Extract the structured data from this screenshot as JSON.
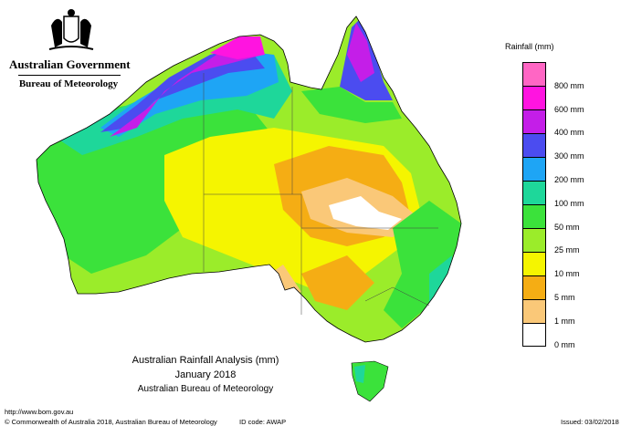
{
  "header": {
    "government": "Australian Government",
    "agency": "Bureau of Meteorology"
  },
  "legend": {
    "title": "Rainfall (mm)",
    "items": [
      {
        "label": "",
        "color": "#ff66c4"
      },
      {
        "label": "800 mm",
        "color": "#ff14e0"
      },
      {
        "label": "600 mm",
        "color": "#c41ee8"
      },
      {
        "label": "400 mm",
        "color": "#4b4cf0"
      },
      {
        "label": "300 mm",
        "color": "#1ea5f5"
      },
      {
        "label": "200 mm",
        "color": "#1ed79a"
      },
      {
        "label": "100 mm",
        "color": "#3be23b"
      },
      {
        "label": "50 mm",
        "color": "#9bec2a"
      },
      {
        "label": "25 mm",
        "color": "#f5f500"
      },
      {
        "label": "10 mm",
        "color": "#f5ad14"
      },
      {
        "label": "5 mm",
        "color": "#fac878"
      },
      {
        "label": "1 mm",
        "color": "#ffffff"
      },
      {
        "label": "0 mm",
        "color": ""
      }
    ]
  },
  "caption": {
    "title": "Australian Rainfall Analysis (mm)",
    "period": "January 2018",
    "source": "Australian Bureau of Meteorology"
  },
  "footer": {
    "url": "http://www.bom.gov.au",
    "copyright": "© Commonwealth of Australia 2018, Australian Bureau of Meteorology",
    "id_code": "ID code: AWAP",
    "issued": "Issued: 03/02/2018"
  }
}
